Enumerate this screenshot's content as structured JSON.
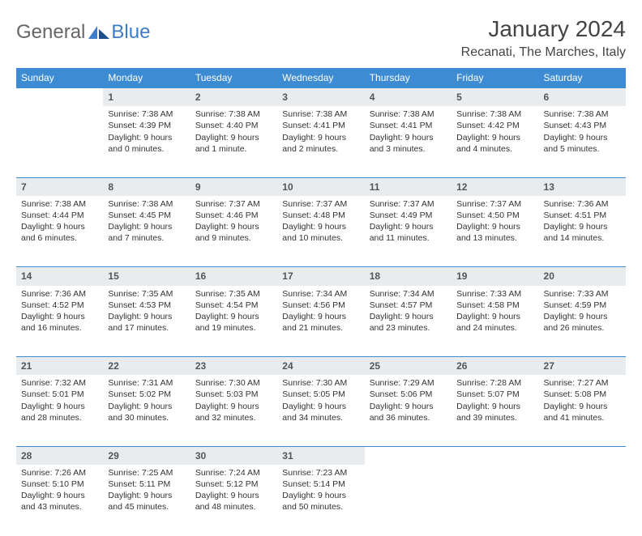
{
  "brand": {
    "general": "General",
    "blue": "Blue"
  },
  "title": "January 2024",
  "location": "Recanati, The Marches, Italy",
  "colors": {
    "header_blue": "#3d8bd2",
    "daynum_bg": "#e9ecef",
    "brand_blue": "#3d7cc9",
    "text": "#333333",
    "title_text": "#444444"
  },
  "daynames": [
    "Sunday",
    "Monday",
    "Tuesday",
    "Wednesday",
    "Thursday",
    "Friday",
    "Saturday"
  ],
  "weeks": [
    {
      "nums": [
        "",
        "1",
        "2",
        "3",
        "4",
        "5",
        "6"
      ],
      "cells": [
        [],
        [
          "Sunrise: 7:38 AM",
          "Sunset: 4:39 PM",
          "Daylight: 9 hours",
          "and 0 minutes."
        ],
        [
          "Sunrise: 7:38 AM",
          "Sunset: 4:40 PM",
          "Daylight: 9 hours",
          "and 1 minute."
        ],
        [
          "Sunrise: 7:38 AM",
          "Sunset: 4:41 PM",
          "Daylight: 9 hours",
          "and 2 minutes."
        ],
        [
          "Sunrise: 7:38 AM",
          "Sunset: 4:41 PM",
          "Daylight: 9 hours",
          "and 3 minutes."
        ],
        [
          "Sunrise: 7:38 AM",
          "Sunset: 4:42 PM",
          "Daylight: 9 hours",
          "and 4 minutes."
        ],
        [
          "Sunrise: 7:38 AM",
          "Sunset: 4:43 PM",
          "Daylight: 9 hours",
          "and 5 minutes."
        ]
      ]
    },
    {
      "nums": [
        "7",
        "8",
        "9",
        "10",
        "11",
        "12",
        "13"
      ],
      "cells": [
        [
          "Sunrise: 7:38 AM",
          "Sunset: 4:44 PM",
          "Daylight: 9 hours",
          "and 6 minutes."
        ],
        [
          "Sunrise: 7:38 AM",
          "Sunset: 4:45 PM",
          "Daylight: 9 hours",
          "and 7 minutes."
        ],
        [
          "Sunrise: 7:37 AM",
          "Sunset: 4:46 PM",
          "Daylight: 9 hours",
          "and 9 minutes."
        ],
        [
          "Sunrise: 7:37 AM",
          "Sunset: 4:48 PM",
          "Daylight: 9 hours",
          "and 10 minutes."
        ],
        [
          "Sunrise: 7:37 AM",
          "Sunset: 4:49 PM",
          "Daylight: 9 hours",
          "and 11 minutes."
        ],
        [
          "Sunrise: 7:37 AM",
          "Sunset: 4:50 PM",
          "Daylight: 9 hours",
          "and 13 minutes."
        ],
        [
          "Sunrise: 7:36 AM",
          "Sunset: 4:51 PM",
          "Daylight: 9 hours",
          "and 14 minutes."
        ]
      ]
    },
    {
      "nums": [
        "14",
        "15",
        "16",
        "17",
        "18",
        "19",
        "20"
      ],
      "cells": [
        [
          "Sunrise: 7:36 AM",
          "Sunset: 4:52 PM",
          "Daylight: 9 hours",
          "and 16 minutes."
        ],
        [
          "Sunrise: 7:35 AM",
          "Sunset: 4:53 PM",
          "Daylight: 9 hours",
          "and 17 minutes."
        ],
        [
          "Sunrise: 7:35 AM",
          "Sunset: 4:54 PM",
          "Daylight: 9 hours",
          "and 19 minutes."
        ],
        [
          "Sunrise: 7:34 AM",
          "Sunset: 4:56 PM",
          "Daylight: 9 hours",
          "and 21 minutes."
        ],
        [
          "Sunrise: 7:34 AM",
          "Sunset: 4:57 PM",
          "Daylight: 9 hours",
          "and 23 minutes."
        ],
        [
          "Sunrise: 7:33 AM",
          "Sunset: 4:58 PM",
          "Daylight: 9 hours",
          "and 24 minutes."
        ],
        [
          "Sunrise: 7:33 AM",
          "Sunset: 4:59 PM",
          "Daylight: 9 hours",
          "and 26 minutes."
        ]
      ]
    },
    {
      "nums": [
        "21",
        "22",
        "23",
        "24",
        "25",
        "26",
        "27"
      ],
      "cells": [
        [
          "Sunrise: 7:32 AM",
          "Sunset: 5:01 PM",
          "Daylight: 9 hours",
          "and 28 minutes."
        ],
        [
          "Sunrise: 7:31 AM",
          "Sunset: 5:02 PM",
          "Daylight: 9 hours",
          "and 30 minutes."
        ],
        [
          "Sunrise: 7:30 AM",
          "Sunset: 5:03 PM",
          "Daylight: 9 hours",
          "and 32 minutes."
        ],
        [
          "Sunrise: 7:30 AM",
          "Sunset: 5:05 PM",
          "Daylight: 9 hours",
          "and 34 minutes."
        ],
        [
          "Sunrise: 7:29 AM",
          "Sunset: 5:06 PM",
          "Daylight: 9 hours",
          "and 36 minutes."
        ],
        [
          "Sunrise: 7:28 AM",
          "Sunset: 5:07 PM",
          "Daylight: 9 hours",
          "and 39 minutes."
        ],
        [
          "Sunrise: 7:27 AM",
          "Sunset: 5:08 PM",
          "Daylight: 9 hours",
          "and 41 minutes."
        ]
      ]
    },
    {
      "nums": [
        "28",
        "29",
        "30",
        "31",
        "",
        "",
        ""
      ],
      "cells": [
        [
          "Sunrise: 7:26 AM",
          "Sunset: 5:10 PM",
          "Daylight: 9 hours",
          "and 43 minutes."
        ],
        [
          "Sunrise: 7:25 AM",
          "Sunset: 5:11 PM",
          "Daylight: 9 hours",
          "and 45 minutes."
        ],
        [
          "Sunrise: 7:24 AM",
          "Sunset: 5:12 PM",
          "Daylight: 9 hours",
          "and 48 minutes."
        ],
        [
          "Sunrise: 7:23 AM",
          "Sunset: 5:14 PM",
          "Daylight: 9 hours",
          "and 50 minutes."
        ],
        [],
        [],
        []
      ]
    }
  ]
}
